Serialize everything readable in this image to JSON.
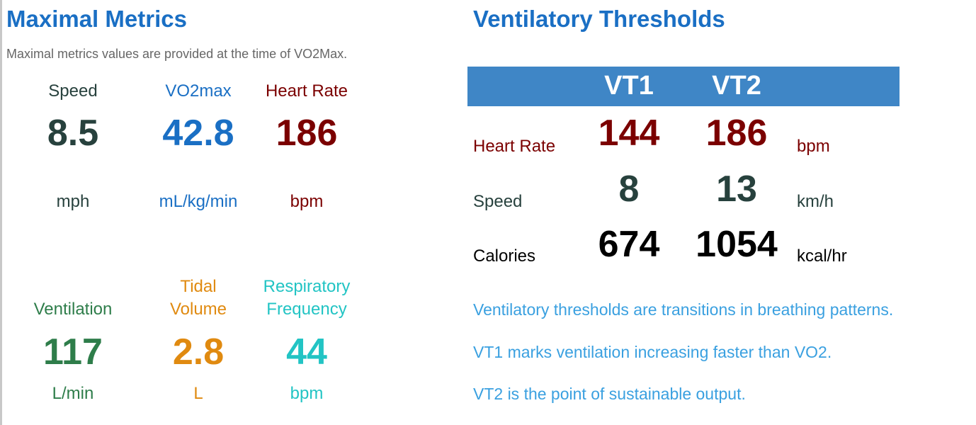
{
  "maximal": {
    "title": "Maximal Metrics",
    "subtitle": "Maximal metrics values are provided at the time of VO2Max.",
    "metrics": [
      {
        "label": "Speed",
        "value": "8.5",
        "unit": "mph",
        "color": "#27413d"
      },
      {
        "label": "VO2max",
        "value": "42.8",
        "unit": "mL/kg/min",
        "color": "#1a6fc4"
      },
      {
        "label": "Heart Rate",
        "value": "186",
        "unit": "bpm",
        "color": "#7b0000"
      },
      {
        "label": "Ventilation",
        "value": "117",
        "unit": "L/min",
        "color": "#2e7d4a"
      },
      {
        "label_line1": "Tidal",
        "label_line2": "Volume",
        "value": "2.8",
        "unit": "L",
        "color": "#e08a10"
      },
      {
        "label_line1": "Respiratory",
        "label_line2": "Frequency",
        "value": "44",
        "unit": "bpm",
        "color": "#22c4c4"
      }
    ]
  },
  "ventilatory": {
    "title": "Ventilatory Thresholds",
    "columns": [
      "VT1",
      "VT2"
    ],
    "rows": [
      {
        "label": "Heart Rate",
        "vt1": "144",
        "vt2": "186",
        "unit": "bpm"
      },
      {
        "label": "Speed",
        "vt1": "8",
        "vt2": "13",
        "unit": "km/h"
      },
      {
        "label": "Calories",
        "vt1": "674",
        "vt2": "1054",
        "unit": "kcal/hr"
      }
    ],
    "notes": [
      "Ventilatory thresholds are transitions in breathing patterns.",
      "VT1 marks ventilation increasing faster than VO2.",
      "VT2 is the point of sustainable output."
    ],
    "header_color": "#3f86c6"
  }
}
